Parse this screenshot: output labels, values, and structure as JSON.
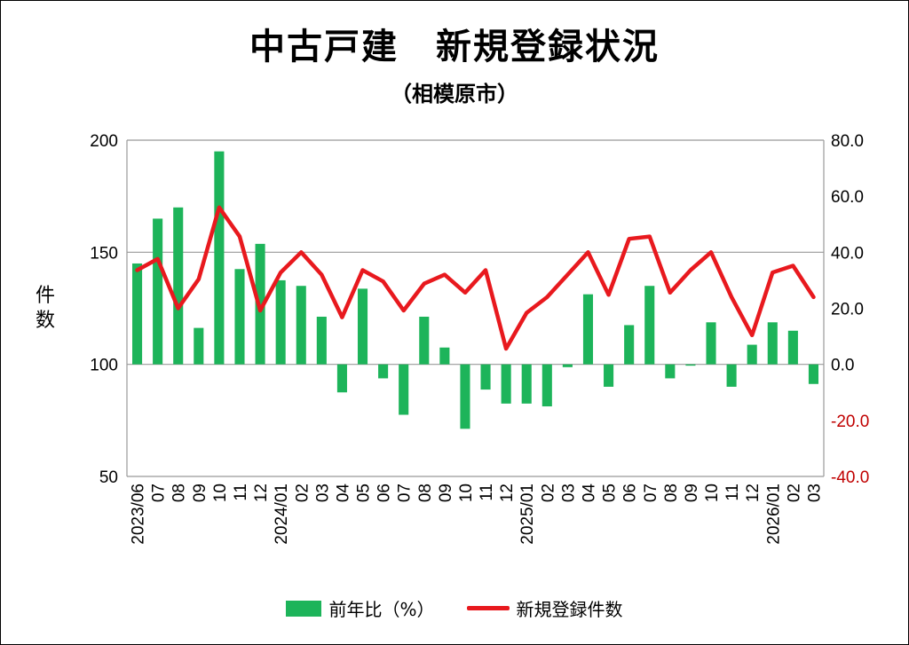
{
  "title": "中古戸建　新規登録状況",
  "subtitle": "（相模原市）",
  "y_axis_label": "件数",
  "colors": {
    "bar": "#1db45a",
    "line": "#e8191e",
    "right_axis_text": "#c00000",
    "grid": "#999999"
  },
  "chart_data": {
    "type": "bar+line",
    "categories": [
      "2023/06",
      "07",
      "08",
      "09",
      "10",
      "11",
      "12",
      "2024/01",
      "02",
      "03",
      "04",
      "05",
      "06",
      "07",
      "08",
      "09",
      "10",
      "11",
      "12",
      "2025/01",
      "02",
      "03",
      "04",
      "05",
      "06",
      "07",
      "08",
      "09",
      "10",
      "11",
      "12",
      "2026/01",
      "02",
      "03"
    ],
    "left_axis": {
      "label": "件数",
      "ylim": [
        50,
        200
      ],
      "ticks": [
        "200",
        "150",
        "100",
        "50"
      ]
    },
    "right_axis": {
      "ylim": [
        -40,
        80
      ],
      "ticks": [
        "80.0",
        "60.0",
        "40.0",
        "20.0",
        "0.0",
        "-20.0",
        "-40.0"
      ]
    },
    "series": [
      {
        "name": "前年比（%）",
        "type": "bar",
        "axis": "right",
        "values": [
          36,
          52,
          56,
          13,
          76,
          34,
          43,
          30,
          28,
          17,
          -10,
          27,
          -5,
          -18,
          17,
          6,
          -23,
          -9,
          -14,
          -14,
          -15,
          -1,
          25,
          -8,
          14,
          28,
          -5,
          0,
          15,
          -8,
          7,
          15,
          12,
          -7
        ]
      },
      {
        "name": "新規登録件数",
        "type": "line",
        "axis": "left",
        "values": [
          142,
          147,
          125,
          138,
          170,
          157,
          124,
          141,
          150,
          140,
          121,
          142,
          137,
          124,
          136,
          140,
          132,
          142,
          107,
          123,
          130,
          140,
          150,
          131,
          156,
          157,
          132,
          142,
          150,
          130,
          113,
          141,
          144,
          130
        ]
      }
    ],
    "legend_position": "bottom",
    "grid": "horizontal"
  }
}
